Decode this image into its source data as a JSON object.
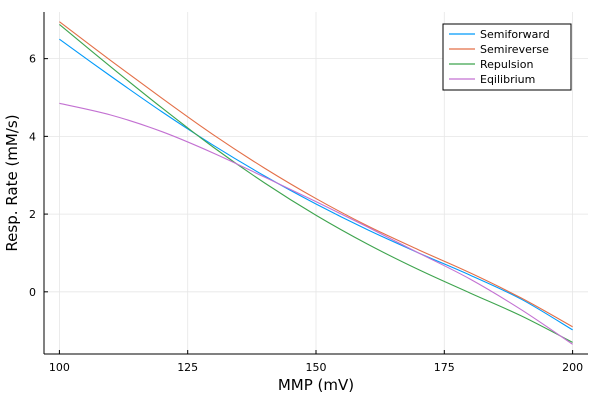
{
  "chart_data": {
    "type": "line",
    "title": "",
    "xlabel": "MMP (mV)",
    "ylabel": "Resp. Rate (mM/s)",
    "xlim": [
      97,
      203
    ],
    "ylim": [
      -1.6,
      7.2
    ],
    "xticks": [
      100,
      125,
      150,
      175,
      200
    ],
    "yticks": [
      0,
      2,
      4,
      6
    ],
    "xtick_labels": [
      "100",
      "125",
      "150",
      "175",
      "200"
    ],
    "ytick_labels": [
      "0",
      "2",
      "4",
      "6"
    ],
    "grid": true,
    "legend_position": "top-right",
    "x": [
      100,
      110,
      120,
      130,
      140,
      150,
      160,
      170,
      180,
      190,
      200
    ],
    "series": [
      {
        "name": "Semiforward",
        "color": "#009AFA",
        "values": [
          6.5,
          5.55,
          4.63,
          3.77,
          2.98,
          2.26,
          1.6,
          1.0,
          0.43,
          -0.19,
          -0.98
        ]
      },
      {
        "name": "Semireverse",
        "color": "#E36F47",
        "values": [
          6.95,
          5.95,
          4.98,
          4.04,
          3.18,
          2.4,
          1.7,
          1.08,
          0.49,
          -0.16,
          -0.9
        ]
      },
      {
        "name": "Repulsion",
        "color": "#3EA44E",
        "values": [
          6.88,
          5.79,
          4.73,
          3.72,
          2.8,
          1.97,
          1.23,
          0.57,
          -0.03,
          -0.62,
          -1.3
        ]
      },
      {
        "name": "Eqilibrium",
        "color": "#C371D2",
        "values": [
          4.85,
          4.55,
          4.12,
          3.57,
          2.95,
          2.32,
          1.67,
          1.0,
          0.33,
          -0.46,
          -1.35
        ]
      }
    ]
  }
}
